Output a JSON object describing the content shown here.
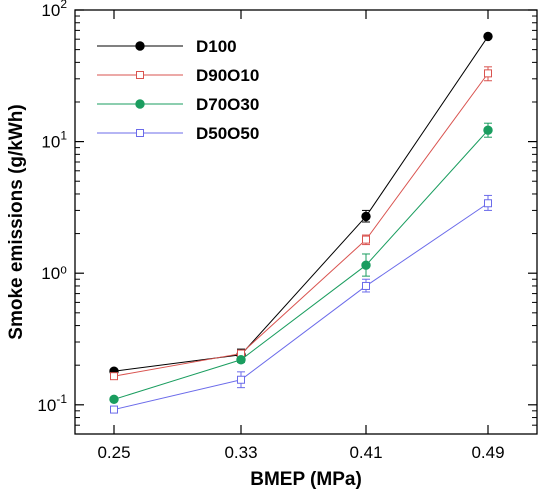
{
  "chart_data": {
    "type": "line",
    "xlabel": "BMEP (MPa)",
    "ylabel": "Smoke emissions (g/kWh)",
    "y_scale": "log",
    "ylim": [
      0.06,
      100
    ],
    "categories": [
      "0.25",
      "0.33",
      "0.41",
      "0.49"
    ],
    "y_ticks": [
      {
        "value": 0.1,
        "base": "10",
        "exp": "-1"
      },
      {
        "value": 1,
        "label": "10⁰",
        "base": "10",
        "exp": "0"
      },
      {
        "value": 10,
        "base": "10",
        "exp": "1"
      },
      {
        "value": 100,
        "base": "10",
        "exp": "2"
      }
    ],
    "legend_position": "top-left",
    "grid": false,
    "series": [
      {
        "name": "D100",
        "color": "#000000",
        "marker": "filled-circle",
        "values": [
          0.18,
          0.24,
          2.7,
          63
        ],
        "errors": [
          [
            0.18,
            0.18
          ],
          [
            0.215,
            0.265
          ],
          [
            2.45,
            3.0
          ],
          [
            63,
            63
          ]
        ]
      },
      {
        "name": "D90O10",
        "color": "#d9534f",
        "marker": "open-square",
        "values": [
          0.165,
          0.245,
          1.8,
          33
        ],
        "errors": [
          [
            0.157,
            0.173
          ],
          [
            0.235,
            0.255
          ],
          [
            1.65,
            1.95
          ],
          [
            29,
            37
          ]
        ]
      },
      {
        "name": "D70O30",
        "color": "#1a9d5f",
        "marker": "filled-circle",
        "values": [
          0.11,
          0.22,
          1.15,
          12.2
        ],
        "errors": [
          [
            0.11,
            0.11
          ],
          [
            0.21,
            0.23
          ],
          [
            0.95,
            1.4
          ],
          [
            10.8,
            13.8
          ]
        ]
      },
      {
        "name": "D50O50",
        "color": "#6b6bea",
        "marker": "open-square",
        "values": [
          0.092,
          0.155,
          0.8,
          3.4
        ],
        "errors": [
          [
            0.087,
            0.097
          ],
          [
            0.135,
            0.178
          ],
          [
            0.72,
            0.9
          ],
          [
            3.0,
            3.9
          ]
        ]
      }
    ]
  }
}
